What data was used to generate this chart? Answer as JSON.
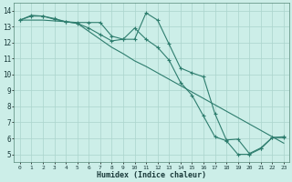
{
  "xlabel": "Humidex (Indice chaleur)",
  "bg_color": "#cceee8",
  "grid_color": "#aad4cc",
  "line_color": "#2e7d6e",
  "xlim": [
    -0.5,
    23.5
  ],
  "ylim": [
    4.5,
    14.5
  ],
  "ytick_values": [
    5,
    6,
    7,
    8,
    9,
    10,
    11,
    12,
    13,
    14
  ],
  "line1_x": [
    0,
    1,
    2,
    3,
    4,
    5,
    6,
    7,
    8,
    9,
    10,
    11,
    12,
    13,
    14,
    15,
    16,
    17,
    18,
    19,
    20,
    21,
    22,
    23
  ],
  "line1_y": [
    13.4,
    13.65,
    13.65,
    13.5,
    13.3,
    13.25,
    13.25,
    13.25,
    12.4,
    12.2,
    12.2,
    13.85,
    13.4,
    11.9,
    10.4,
    10.1,
    9.85,
    7.55,
    5.9,
    5.95,
    5.05,
    5.4,
    6.05,
    6.05
  ],
  "line2_x": [
    0,
    1,
    2,
    3,
    4,
    5,
    6,
    7,
    8,
    9,
    10,
    11,
    12,
    13,
    14,
    15,
    16,
    17,
    18,
    19,
    20,
    21,
    22,
    23
  ],
  "line2_y": [
    13.4,
    13.7,
    13.65,
    13.45,
    13.3,
    13.2,
    12.9,
    12.5,
    12.1,
    12.2,
    12.9,
    12.2,
    11.7,
    10.9,
    9.5,
    8.7,
    7.4,
    6.1,
    5.85,
    5.0,
    5.0,
    5.35,
    6.05,
    6.1
  ],
  "line3_x": [
    0,
    1,
    2,
    3,
    4,
    5,
    6,
    7,
    8,
    9,
    10,
    11,
    12,
    13,
    14,
    15,
    16,
    17,
    18,
    19,
    20,
    21,
    22,
    23
  ],
  "line3_y": [
    13.4,
    13.4,
    13.4,
    13.35,
    13.3,
    13.2,
    12.7,
    12.2,
    11.7,
    11.3,
    10.85,
    10.5,
    10.1,
    9.7,
    9.3,
    8.9,
    8.5,
    8.1,
    7.7,
    7.3,
    6.9,
    6.5,
    6.1,
    5.7
  ],
  "xtick_fontsize": 4.5,
  "ytick_fontsize": 5.5,
  "xlabel_fontsize": 6.0
}
